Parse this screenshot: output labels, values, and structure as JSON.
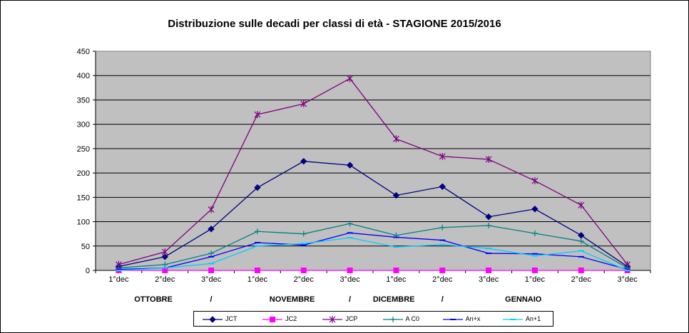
{
  "chart_data": {
    "type": "line",
    "title": "Distribuzione sulle decadi  per classi di età - STAGIONE 2015/2016",
    "categories": [
      "1°dec",
      "2°dec",
      "3°dec",
      "1°dec",
      "2°dec",
      "3°dec",
      "1°dec",
      "2°dec",
      "3°dec",
      "1°dec",
      "2°dec",
      "3°dec"
    ],
    "month_labels": [
      "OTTOBRE",
      "/",
      "NOVEMBRE",
      "/",
      "DICEMBRE",
      "/",
      "GENNAIO"
    ],
    "ylim": [
      0,
      450
    ],
    "yticks": [
      0,
      50,
      100,
      150,
      200,
      250,
      300,
      350,
      400,
      450
    ],
    "grid": true,
    "legend_position": "bottom",
    "plot_background": "#C0C0C0",
    "series": [
      {
        "name": "JCT",
        "color": "#000080",
        "marker": "diamond",
        "values": [
          8,
          28,
          85,
          170,
          224,
          216,
          154,
          172,
          110,
          126,
          72,
          8
        ]
      },
      {
        "name": "JC2",
        "color": "#FF00FF",
        "marker": "square",
        "values": [
          0,
          0,
          0,
          0,
          0,
          0,
          0,
          0,
          0,
          0,
          0,
          0
        ]
      },
      {
        "name": "JCP",
        "color": "#800080",
        "marker": "asterisk",
        "values": [
          12,
          38,
          125,
          320,
          342,
          394,
          270,
          234,
          228,
          184,
          134,
          12
        ]
      },
      {
        "name": "A C0",
        "color": "#008080",
        "marker": "plus",
        "values": [
          5,
          12,
          35,
          80,
          75,
          96,
          72,
          88,
          92,
          76,
          60,
          5
        ]
      },
      {
        "name": "An+x",
        "color": "#0000FF",
        "marker": "dash",
        "values": [
          2,
          5,
          28,
          57,
          52,
          77,
          68,
          62,
          35,
          34,
          28,
          2
        ]
      },
      {
        "name": "An+1",
        "color": "#00CCFF",
        "marker": "dash",
        "values": [
          0,
          5,
          14,
          50,
          55,
          67,
          48,
          53,
          45,
          30,
          40,
          0
        ]
      }
    ]
  }
}
